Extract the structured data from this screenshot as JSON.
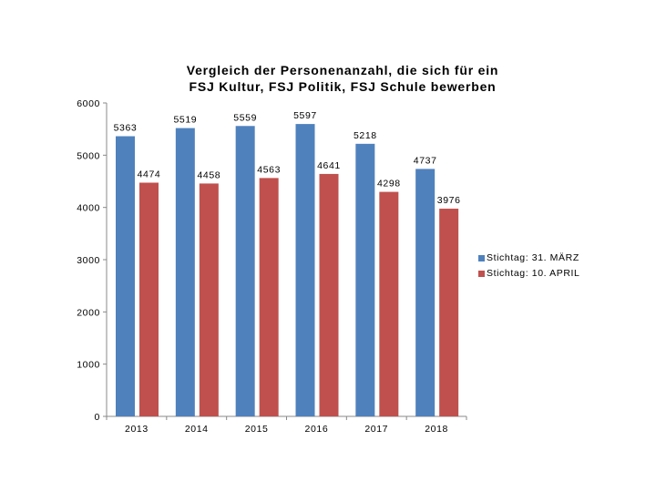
{
  "chart_data": {
    "type": "bar",
    "title_lines": [
      "Vergleich der Personenanzahl, die sich für ein",
      "FSJ Kultur, FSJ Politik, FSJ Schule bewerben"
    ],
    "categories": [
      "2013",
      "2014",
      "2015",
      "2016",
      "2017",
      "2018"
    ],
    "series": [
      {
        "name": "Stichtag: 31. MÄRZ",
        "color": "#4F81BD",
        "values": [
          5363,
          5519,
          5559,
          5597,
          5218,
          4737
        ]
      },
      {
        "name": "Stichtag: 10. APRIL",
        "color": "#C0504D",
        "values": [
          4474,
          4458,
          4563,
          4641,
          4298,
          3976
        ]
      }
    ],
    "ylim": [
      0,
      6000
    ],
    "yticks": [
      0,
      1000,
      2000,
      3000,
      4000,
      5000,
      6000
    ],
    "xlabel": "",
    "ylabel": "",
    "grid": false,
    "legend": "right",
    "data_labels": true
  }
}
